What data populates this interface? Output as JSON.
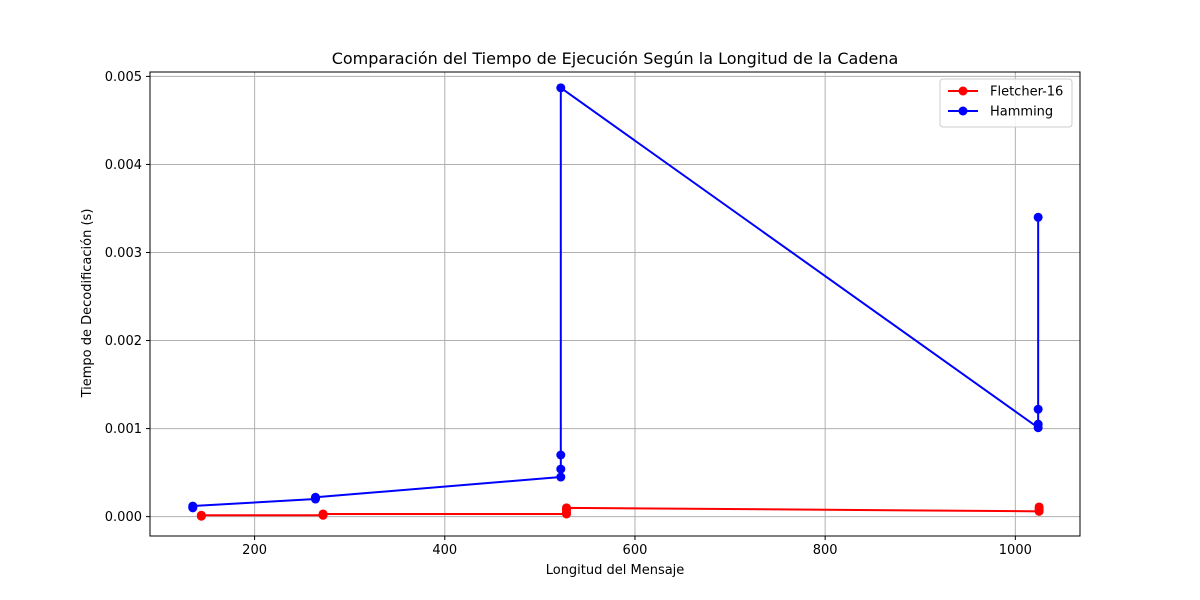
{
  "chart_data": {
    "type": "line",
    "title": "Comparación del Tiempo de Ejecución Según la Longitud de la Cadena",
    "xlabel": "Longitud del Mensaje",
    "ylabel": "Tiempo de Decodificación (s)",
    "xlim": [
      90,
      1068
    ],
    "ylim": [
      -0.00022,
      0.00505
    ],
    "xticks": [
      200,
      400,
      600,
      800,
      1000
    ],
    "xtick_labels": [
      "200",
      "400",
      "600",
      "800",
      "1000"
    ],
    "yticks": [
      0.0,
      0.001,
      0.002,
      0.003,
      0.004,
      0.005
    ],
    "ytick_labels": [
      "0.000",
      "0.001",
      "0.002",
      "0.003",
      "0.004",
      "0.005"
    ],
    "grid": true,
    "legend_position": "top-right",
    "series": [
      {
        "name": "Fletcher-16",
        "color": "#ff0000",
        "points": [
          [
            144,
            5e-06
          ],
          [
            144,
            1e-05
          ],
          [
            144,
            1.5e-05
          ],
          [
            272,
            1.5e-05
          ],
          [
            272,
            2e-05
          ],
          [
            272,
            3e-05
          ],
          [
            528,
            3e-05
          ],
          [
            528,
            5e-05
          ],
          [
            528,
            8e-05
          ],
          [
            528,
            0.0001
          ],
          [
            1025,
            6e-05
          ],
          [
            1025,
            8e-05
          ],
          [
            1025,
            0.00011
          ]
        ]
      },
      {
        "name": "Hamming",
        "color": "#0000ff",
        "points": [
          [
            135,
            0.0001
          ],
          [
            135,
            0.00011
          ],
          [
            135,
            0.00012
          ],
          [
            264,
            0.0002
          ],
          [
            264,
            0.00021
          ],
          [
            264,
            0.00022
          ],
          [
            522,
            0.00045
          ],
          [
            522,
            0.00054
          ],
          [
            522,
            0.0007
          ],
          [
            522,
            0.00487
          ],
          [
            1024,
            0.00101
          ],
          [
            1024,
            0.00105
          ],
          [
            1024,
            0.00122
          ],
          [
            1024,
            0.0034
          ]
        ]
      }
    ]
  }
}
